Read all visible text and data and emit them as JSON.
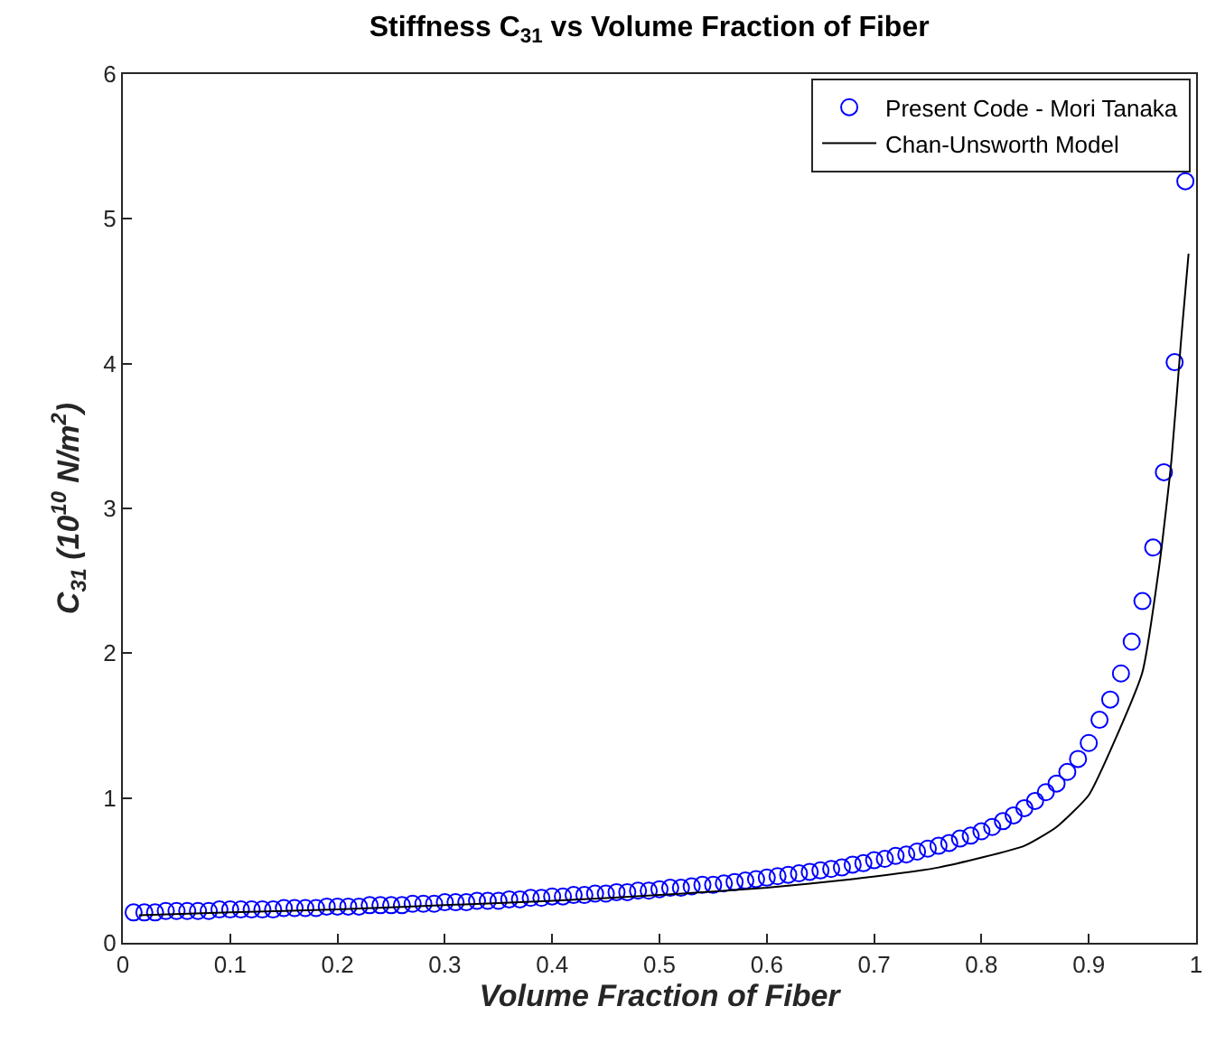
{
  "chart_data": {
    "type": "scatter",
    "title": "Stiffness C$_{31}$ vs Volume Fraction of Fiber",
    "xlabel": "Volume Fraction of Fiber",
    "ylabel": "C$_{31}$ (10$^{10}$ N/m$^{2}$)",
    "xlim": [
      0,
      1
    ],
    "ylim": [
      0,
      6
    ],
    "xticks": [
      0,
      0.1,
      0.2,
      0.3,
      0.4,
      0.5,
      0.6,
      0.7,
      0.8,
      0.9,
      1
    ],
    "yticks": [
      0,
      1,
      2,
      3,
      4,
      5,
      6
    ],
    "grid": false,
    "legend": "top right",
    "series": [
      {
        "name": "Present Code - Mori Tanaka",
        "marker": "circle",
        "color": "#0000ff",
        "x": [
          0.01,
          0.02,
          0.03,
          0.04,
          0.05,
          0.06,
          0.07,
          0.08,
          0.09,
          0.1,
          0.11,
          0.12,
          0.13,
          0.14,
          0.15,
          0.16,
          0.17,
          0.18,
          0.19,
          0.2,
          0.21,
          0.22,
          0.23,
          0.24,
          0.25,
          0.26,
          0.27,
          0.28,
          0.29,
          0.3,
          0.31,
          0.32,
          0.33,
          0.34,
          0.35,
          0.36,
          0.37,
          0.38,
          0.39,
          0.4,
          0.41,
          0.42,
          0.43,
          0.44,
          0.45,
          0.46,
          0.47,
          0.48,
          0.49,
          0.5,
          0.51,
          0.52,
          0.53,
          0.54,
          0.55,
          0.56,
          0.57,
          0.58,
          0.59,
          0.6,
          0.61,
          0.62,
          0.63,
          0.64,
          0.65,
          0.66,
          0.67,
          0.68,
          0.69,
          0.7,
          0.71,
          0.72,
          0.73,
          0.74,
          0.75,
          0.76,
          0.77,
          0.78,
          0.79,
          0.8,
          0.81,
          0.82,
          0.83,
          0.84,
          0.85,
          0.86,
          0.87,
          0.88,
          0.89,
          0.9,
          0.91,
          0.92,
          0.93,
          0.94,
          0.95,
          0.96,
          0.97,
          0.98,
          0.99
        ],
        "values": [
          0.21,
          0.21,
          0.21,
          0.22,
          0.22,
          0.22,
          0.22,
          0.22,
          0.23,
          0.23,
          0.23,
          0.23,
          0.23,
          0.23,
          0.24,
          0.24,
          0.24,
          0.24,
          0.25,
          0.25,
          0.25,
          0.25,
          0.26,
          0.26,
          0.26,
          0.26,
          0.27,
          0.27,
          0.27,
          0.28,
          0.28,
          0.28,
          0.29,
          0.29,
          0.29,
          0.3,
          0.3,
          0.31,
          0.31,
          0.32,
          0.32,
          0.33,
          0.33,
          0.34,
          0.34,
          0.35,
          0.35,
          0.36,
          0.36,
          0.37,
          0.38,
          0.38,
          0.39,
          0.4,
          0.4,
          0.41,
          0.42,
          0.43,
          0.44,
          0.45,
          0.46,
          0.47,
          0.48,
          0.49,
          0.5,
          0.51,
          0.52,
          0.54,
          0.55,
          0.57,
          0.58,
          0.6,
          0.61,
          0.63,
          0.65,
          0.67,
          0.69,
          0.72,
          0.74,
          0.77,
          0.8,
          0.84,
          0.88,
          0.93,
          0.98,
          1.04,
          1.1,
          1.18,
          1.27,
          1.38,
          1.54,
          1.68,
          1.86,
          2.08,
          2.36,
          2.73,
          3.25,
          4.01,
          5.26
        ]
      },
      {
        "name": "Chan-Unsworth Model",
        "type": "line",
        "marker": "none",
        "line_style": "solid",
        "color": "#000000",
        "x": [
          0.015,
          0.1,
          0.2,
          0.3,
          0.4,
          0.5,
          0.6,
          0.68,
          0.76,
          0.84,
          0.87,
          0.9,
          0.925,
          0.95,
          0.966,
          0.977,
          0.986,
          0.993
        ],
        "values": [
          0.19,
          0.21,
          0.23,
          0.26,
          0.29,
          0.33,
          0.38,
          0.44,
          0.52,
          0.67,
          0.8,
          1.02,
          1.41,
          1.87,
          2.62,
          3.33,
          4.16,
          4.76
        ]
      }
    ]
  }
}
